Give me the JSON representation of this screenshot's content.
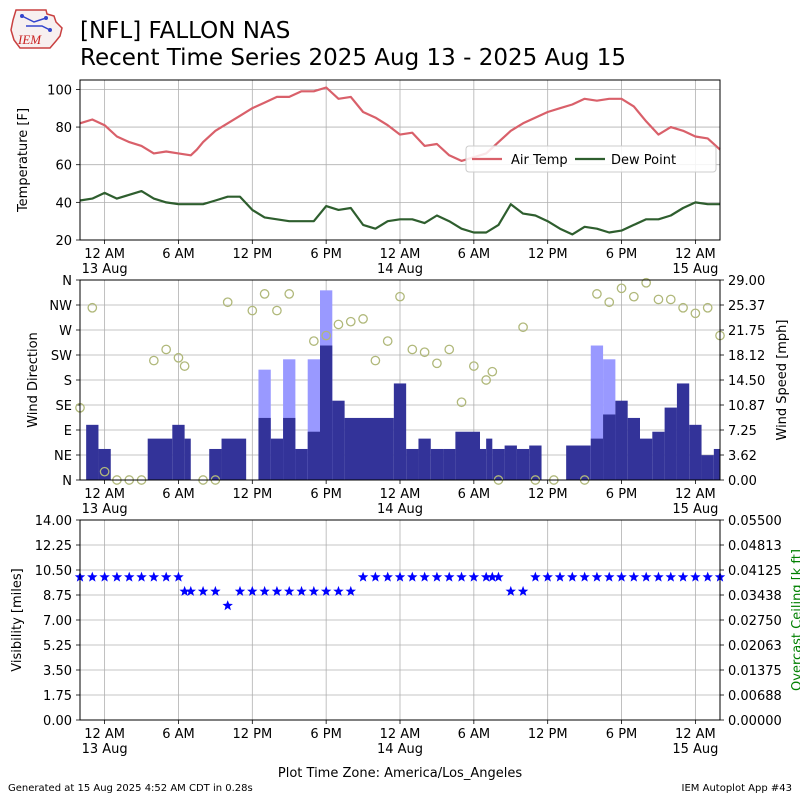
{
  "header": {
    "title_line1": "[NFL] FALLON NAS",
    "title_line2": "Recent Time Series 2025 Aug 13 - 2025 Aug 15",
    "logo_text": "IEM"
  },
  "footer": {
    "generated": "Generated at 15 Aug 2025 4:52 AM CDT in 0.28s",
    "app": "IEM Autoplot App #43"
  },
  "chart_data": [
    {
      "type": "line",
      "ylabel": "Temperature [F]",
      "ylim": [
        20,
        105
      ],
      "yticks": [
        20,
        40,
        60,
        80,
        100
      ],
      "x_unit": "hours since 13 Aug 12 AM (America/Los_Angeles)",
      "xlim": [
        -2,
        50
      ],
      "xticks": [
        "12 AM\n13 Aug",
        "6 AM",
        "12 PM",
        "6 PM",
        "12 AM\n14 Aug",
        "6 AM",
        "12 PM",
        "6 PM",
        "12 AM\n15 Aug"
      ],
      "grid": true,
      "legend": "right",
      "series": [
        {
          "name": "Air Temp",
          "color": "#d9606a",
          "x": [
            -2,
            -1,
            0,
            1,
            2,
            3,
            4,
            5,
            6,
            7,
            7.5,
            8,
            9,
            10,
            11,
            12,
            13,
            14,
            15,
            16,
            17,
            18,
            19,
            20,
            21,
            22,
            23,
            24,
            25,
            26,
            27,
            28,
            29,
            30,
            31,
            32,
            33,
            34,
            35,
            36,
            37,
            38,
            39,
            40,
            41,
            42,
            43,
            44,
            45,
            46,
            47,
            48,
            49,
            50
          ],
          "values": [
            82,
            84,
            81,
            75,
            72,
            70,
            66,
            67,
            66,
            65,
            68,
            72,
            78,
            82,
            86,
            90,
            93,
            96,
            96,
            99,
            99,
            101,
            95,
            96,
            88,
            85,
            81,
            76,
            77,
            70,
            71,
            65,
            62,
            64,
            66,
            72,
            78,
            82,
            85,
            88,
            90,
            92,
            95,
            94,
            95,
            95,
            91,
            83,
            76,
            80,
            78,
            75,
            74,
            68
          ]
        },
        {
          "name": "Dew Point",
          "color": "#2e5e2e",
          "x": [
            -2,
            -1,
            0,
            1,
            2,
            3,
            4,
            5,
            6,
            7,
            8,
            9,
            10,
            11,
            12,
            13,
            14,
            15,
            16,
            17,
            18,
            19,
            20,
            21,
            22,
            23,
            24,
            25,
            26,
            27,
            28,
            29,
            30,
            31,
            32,
            33,
            34,
            35,
            36,
            37,
            38,
            39,
            40,
            41,
            42,
            43,
            44,
            45,
            46,
            47,
            48,
            49,
            50
          ],
          "values": [
            41,
            42,
            45,
            42,
            44,
            46,
            42,
            40,
            39,
            39,
            39,
            41,
            43,
            43,
            36,
            32,
            31,
            30,
            30,
            30,
            38,
            36,
            37,
            28,
            26,
            30,
            31,
            31,
            29,
            33,
            30,
            26,
            24,
            24,
            28,
            39,
            34,
            33,
            30,
            26,
            23,
            27,
            26,
            24,
            25,
            28,
            31,
            31,
            33,
            37,
            40,
            39,
            39
          ]
        }
      ]
    },
    {
      "type": "bar",
      "ylabel": "Wind Direction",
      "y2label": "Wind Speed [mph]",
      "direction_ticks": [
        "N",
        "NE",
        "E",
        "SE",
        "S",
        "SW",
        "W",
        "NW",
        "N"
      ],
      "direction_lim": [
        0,
        360
      ],
      "speed_ticks": [
        "0.00",
        "3.62",
        "7.25",
        "10.87",
        "14.50",
        "18.12",
        "21.75",
        "25.37",
        "29.00"
      ],
      "speed_lim": [
        0,
        29
      ],
      "xlim": [
        -2,
        50
      ],
      "xticks": [
        "12 AM\n13 Aug",
        "6 AM",
        "12 PM",
        "6 PM",
        "12 AM\n14 Aug",
        "6 AM",
        "12 PM",
        "6 PM",
        "12 AM\n15 Aug"
      ],
      "grid": true,
      "gust_color": "#9999ff",
      "speed_color": "#333399",
      "direction_color": "#b0b87a",
      "speed_bars": [
        {
          "x0": -1.5,
          "x1": -0.5,
          "speed": 8,
          "gust": null
        },
        {
          "x0": -0.5,
          "x1": 0.5,
          "speed": 4.5,
          "gust": null
        },
        {
          "x0": 3.5,
          "x1": 5.5,
          "speed": 6,
          "gust": null
        },
        {
          "x0": 5.5,
          "x1": 6.5,
          "speed": 8,
          "gust": null
        },
        {
          "x0": 6.5,
          "x1": 7.0,
          "speed": 6,
          "gust": null
        },
        {
          "x0": 8.5,
          "x1": 9.5,
          "speed": 4.5,
          "gust": null
        },
        {
          "x0": 9.5,
          "x1": 11.5,
          "speed": 6,
          "gust": null
        },
        {
          "x0": 12.5,
          "x1": 13.5,
          "speed": 9,
          "gust": 16
        },
        {
          "x0": 13.5,
          "x1": 14.5,
          "speed": 6,
          "gust": null
        },
        {
          "x0": 14.5,
          "x1": 15.5,
          "speed": 9,
          "gust": 17.5
        },
        {
          "x0": 15.5,
          "x1": 16.5,
          "speed": 4.5,
          "gust": null
        },
        {
          "x0": 16.5,
          "x1": 17.5,
          "speed": 7,
          "gust": 17.5
        },
        {
          "x0": 17.5,
          "x1": 18.5,
          "speed": 19.5,
          "gust": 27.5
        },
        {
          "x0": 18.5,
          "x1": 19.5,
          "speed": 11.5,
          "gust": null
        },
        {
          "x0": 19.5,
          "x1": 23.5,
          "speed": 9,
          "gust": null
        },
        {
          "x0": 23.5,
          "x1": 24.5,
          "speed": 14,
          "gust": null
        },
        {
          "x0": 24.5,
          "x1": 25.5,
          "speed": 4.5,
          "gust": null
        },
        {
          "x0": 25.5,
          "x1": 26.5,
          "speed": 6,
          "gust": null
        },
        {
          "x0": 26.5,
          "x1": 27.5,
          "speed": 4.5,
          "gust": null
        },
        {
          "x0": 27.5,
          "x1": 28.5,
          "speed": 4.5,
          "gust": null
        },
        {
          "x0": 28.5,
          "x1": 30.5,
          "speed": 7,
          "gust": null
        },
        {
          "x0": 30.5,
          "x1": 31.0,
          "speed": 4.5,
          "gust": null
        },
        {
          "x0": 31.0,
          "x1": 31.5,
          "speed": 6,
          "gust": null
        },
        {
          "x0": 31.5,
          "x1": 32.5,
          "speed": 4.5,
          "gust": null
        },
        {
          "x0": 32.5,
          "x1": 33.5,
          "speed": 5,
          "gust": null
        },
        {
          "x0": 33.5,
          "x1": 34.5,
          "speed": 4.5,
          "gust": null
        },
        {
          "x0": 34.5,
          "x1": 35.5,
          "speed": 5,
          "gust": null
        },
        {
          "x0": 37.5,
          "x1": 39.5,
          "speed": 5,
          "gust": null
        },
        {
          "x0": 39.5,
          "x1": 40.5,
          "speed": 6,
          "gust": 19.5
        },
        {
          "x0": 40.5,
          "x1": 41.5,
          "speed": 9.5,
          "gust": 17.5
        },
        {
          "x0": 41.5,
          "x1": 42.5,
          "speed": 11.5,
          "gust": null
        },
        {
          "x0": 42.5,
          "x1": 43.5,
          "speed": 9,
          "gust": null
        },
        {
          "x0": 43.5,
          "x1": 44.5,
          "speed": 6,
          "gust": null
        },
        {
          "x0": 44.5,
          "x1": 45.5,
          "speed": 7,
          "gust": null
        },
        {
          "x0": 45.5,
          "x1": 46.5,
          "speed": 10.5,
          "gust": null
        },
        {
          "x0": 46.5,
          "x1": 47.5,
          "speed": 14,
          "gust": null
        },
        {
          "x0": 47.5,
          "x1": 48.5,
          "speed": 8,
          "gust": null
        },
        {
          "x0": 48.5,
          "x1": 49.5,
          "speed": 3.6,
          "gust": null
        },
        {
          "x0": 49.5,
          "x1": 50.0,
          "speed": 4.5,
          "gust": null
        }
      ],
      "direction_points": {
        "x": [
          -2,
          -1,
          0,
          1,
          2,
          3,
          4,
          5,
          6,
          6.5,
          8,
          9,
          10,
          12,
          13,
          14,
          15,
          17,
          18,
          19,
          20,
          21,
          22,
          23,
          24,
          25,
          26,
          27,
          28,
          29,
          30,
          31,
          31.5,
          32,
          34,
          35,
          36.5,
          39,
          40,
          41,
          42,
          43,
          44,
          45,
          46,
          47,
          48,
          49,
          50
        ],
        "values": [
          130,
          310,
          15,
          0,
          0,
          0,
          215,
          235,
          220,
          205,
          0,
          0,
          320,
          305,
          335,
          305,
          335,
          250,
          260,
          280,
          285,
          290,
          215,
          250,
          330,
          235,
          230,
          210,
          235,
          140,
          205,
          180,
          195,
          0,
          275,
          0,
          0,
          0,
          335,
          320,
          345,
          330,
          355,
          325,
          325,
          310,
          300,
          310,
          260
        ]
      }
    },
    {
      "type": "scatter",
      "ylabel": "Visibility [miles]",
      "y2label": "Overcast Ceiling [k ft]",
      "y2label_color": "#008000",
      "ylim": [
        0,
        14
      ],
      "yticks": [
        "0.00",
        "1.75",
        "3.50",
        "5.25",
        "7.00",
        "8.75",
        "10.50",
        "12.25",
        "14.00"
      ],
      "y2lim": [
        0,
        0.055
      ],
      "y2ticks": [
        "0.00000",
        "0.00688",
        "0.01375",
        "0.02063",
        "0.02750",
        "0.03438",
        "0.04125",
        "0.04813",
        "0.05500"
      ],
      "xlim": [
        -2,
        50
      ],
      "xticks": [
        "12 AM\n13 Aug",
        "6 AM",
        "12 PM",
        "6 PM",
        "12 AM\n14 Aug",
        "6 AM",
        "12 PM",
        "6 PM",
        "12 AM\n15 Aug"
      ],
      "xlabel": "Plot Time Zone: America/Los_Angeles",
      "grid": true,
      "marker_color": "#0000ff",
      "x": [
        -2,
        -1,
        0,
        1,
        2,
        3,
        4,
        5,
        6,
        6.5,
        7,
        8,
        9,
        10,
        11,
        12,
        13,
        14,
        15,
        16,
        17,
        18,
        19,
        20,
        21,
        22,
        23,
        24,
        25,
        26,
        27,
        28,
        29,
        30,
        31,
        31.5,
        32,
        33,
        34,
        35,
        36,
        37,
        38,
        39,
        40,
        41,
        42,
        43,
        44,
        45,
        46,
        47,
        48,
        49,
        50
      ],
      "values": [
        10,
        10,
        10,
        10,
        10,
        10,
        10,
        10,
        10,
        9,
        9,
        9,
        9,
        8,
        9,
        9,
        9,
        9,
        9,
        9,
        9,
        9,
        9,
        9,
        10,
        10,
        10,
        10,
        10,
        10,
        10,
        10,
        10,
        10,
        10,
        10,
        10,
        9,
        9,
        10,
        10,
        10,
        10,
        10,
        10,
        10,
        10,
        10,
        10,
        10,
        10,
        10,
        10,
        10,
        10
      ]
    }
  ]
}
